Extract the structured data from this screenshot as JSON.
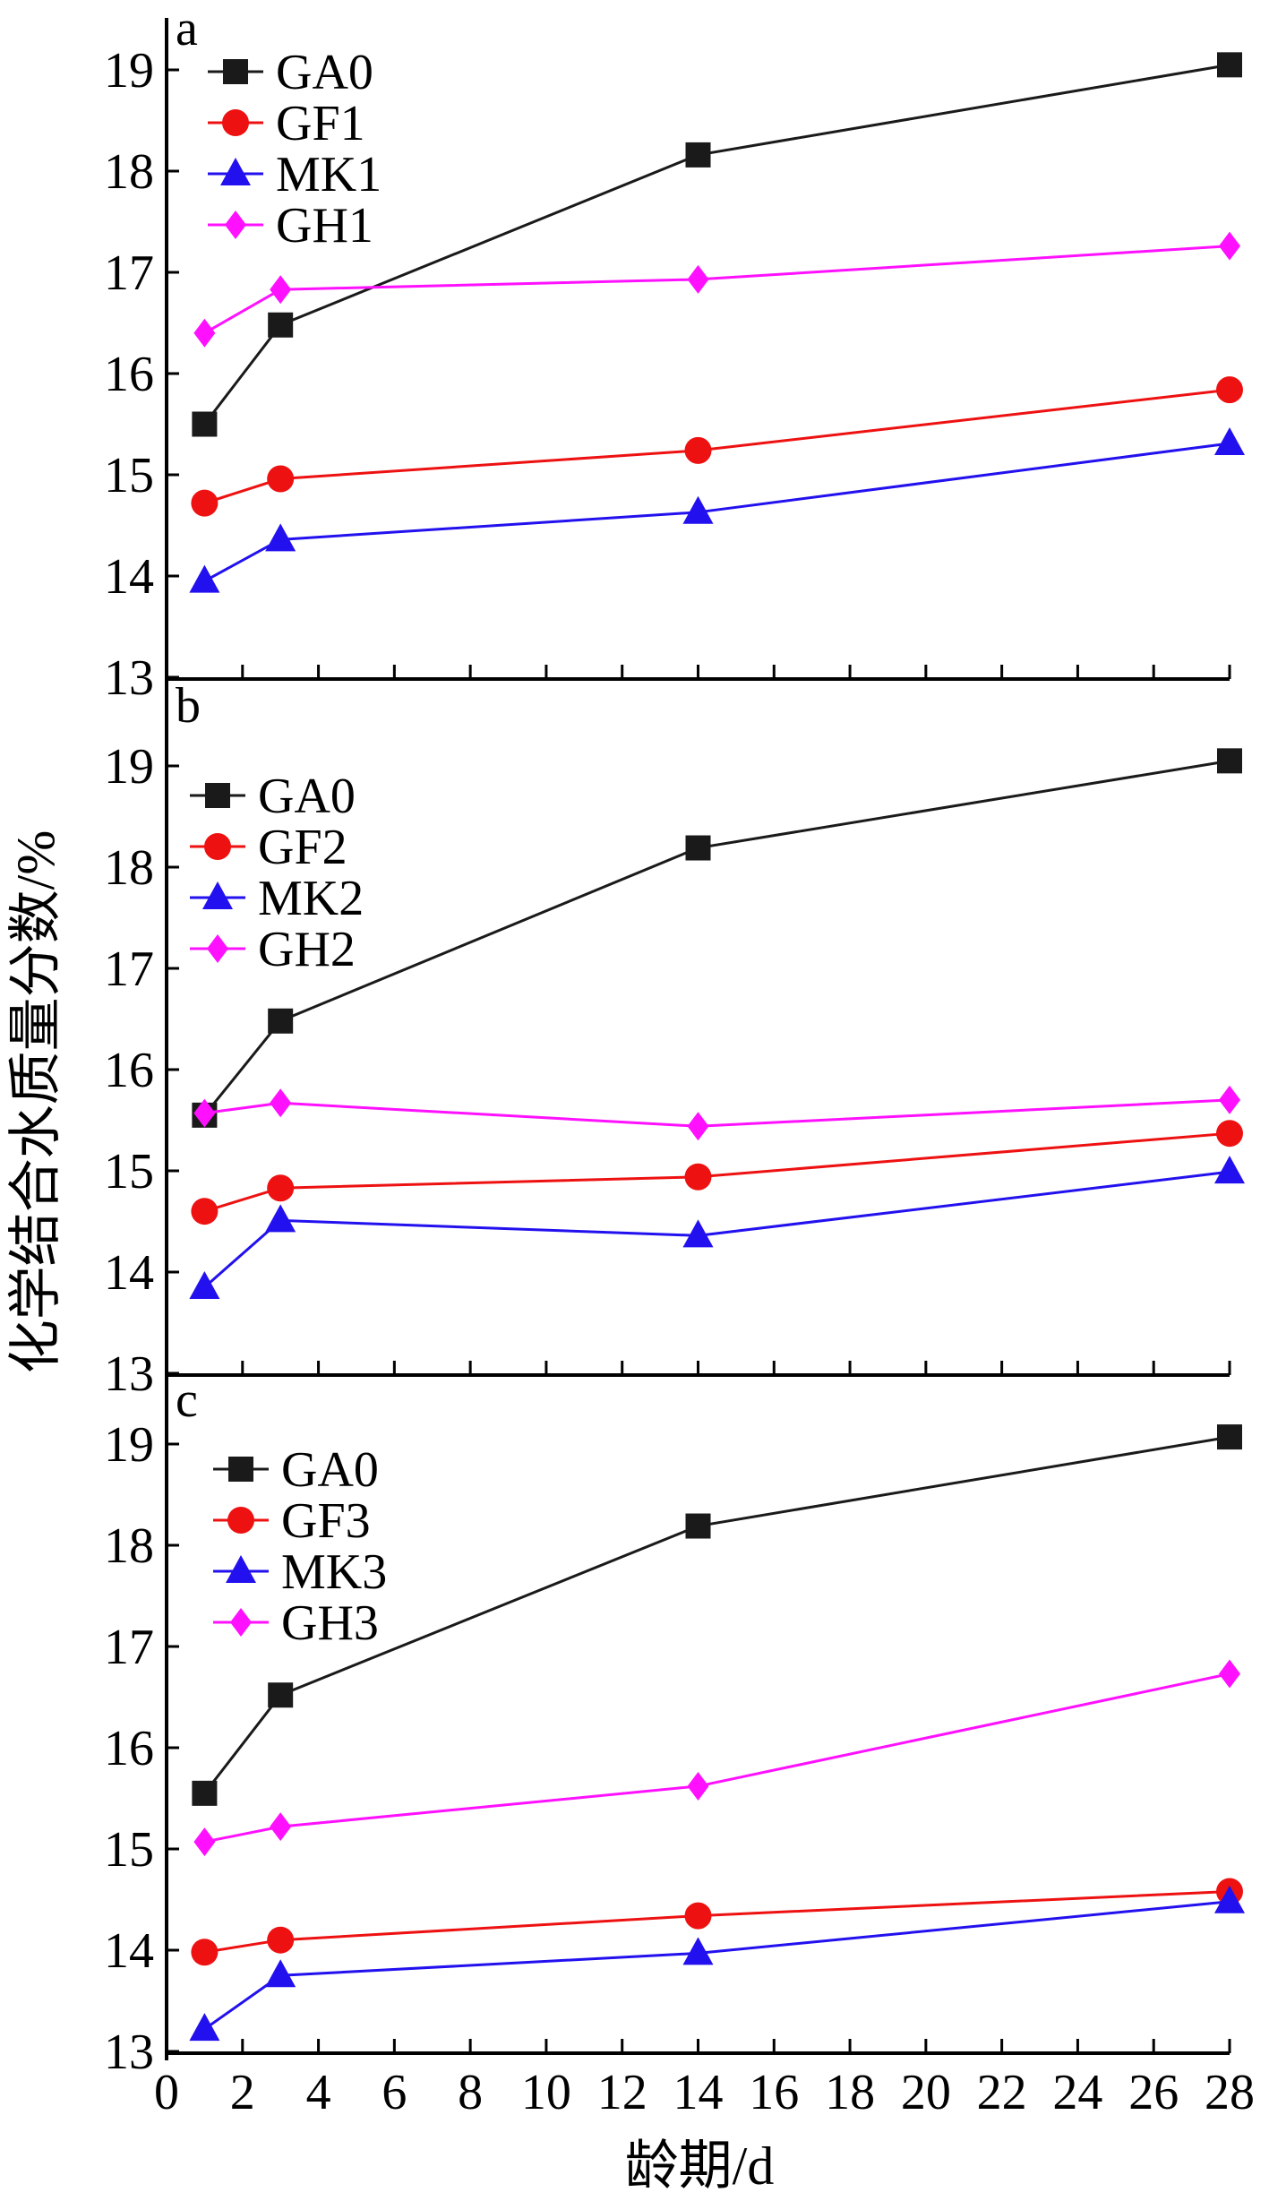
{
  "figure": {
    "x_axis_title": "龄期/d",
    "y_axis_title": "化学结合水质量分数/%"
  },
  "colors": {
    "GA0": "#1a1a1a",
    "GF": "#ee1111",
    "MK": "#2211ee",
    "GH": "#ff11ff",
    "axis": "#000000"
  },
  "chart_data": [
    {
      "type": "line",
      "panel_label": "a",
      "x": [
        1,
        3,
        14,
        28
      ],
      "xlim": [
        0,
        28
      ],
      "ylim": [
        13,
        19.5
      ],
      "x_ticks": [
        "0",
        "2",
        "4",
        "6",
        "8",
        "10",
        "12",
        "14",
        "16",
        "18",
        "20",
        "22",
        "24",
        "26",
        "28"
      ],
      "y_ticks": [
        "13",
        "14",
        "15",
        "16",
        "17",
        "18",
        "19"
      ],
      "legend_position": "top-left",
      "series": [
        {
          "name": "GA0",
          "marker": "square",
          "color_key": "GA0",
          "values": [
            15.5,
            16.48,
            18.16,
            19.05
          ]
        },
        {
          "name": "GF1",
          "marker": "circle",
          "color_key": "GF",
          "values": [
            14.72,
            14.96,
            15.24,
            15.84
          ]
        },
        {
          "name": "MK1",
          "marker": "triangle",
          "color_key": "MK",
          "values": [
            13.95,
            14.36,
            14.63,
            15.31
          ]
        },
        {
          "name": "GH1",
          "marker": "diamond",
          "color_key": "GH",
          "values": [
            16.4,
            16.83,
            16.93,
            17.26
          ]
        }
      ]
    },
    {
      "type": "line",
      "panel_label": "b",
      "x": [
        1,
        3,
        14,
        28
      ],
      "xlim": [
        0,
        28
      ],
      "ylim": [
        13,
        19.5
      ],
      "x_ticks": [
        "0",
        "2",
        "4",
        "6",
        "8",
        "10",
        "12",
        "14",
        "16",
        "18",
        "20",
        "22",
        "24",
        "26",
        "28"
      ],
      "y_ticks": [
        "13",
        "14",
        "15",
        "16",
        "17",
        "18",
        "19"
      ],
      "legend_position": "top-left",
      "series": [
        {
          "name": "GA0",
          "marker": "square",
          "color_key": "GA0",
          "values": [
            15.55,
            16.48,
            18.19,
            19.05
          ]
        },
        {
          "name": "GF2",
          "marker": "circle",
          "color_key": "GF",
          "values": [
            14.6,
            14.83,
            14.94,
            15.37
          ]
        },
        {
          "name": "MK2",
          "marker": "triangle",
          "color_key": "MK",
          "values": [
            13.85,
            14.51,
            14.36,
            14.99
          ]
        },
        {
          "name": "GH2",
          "marker": "diamond",
          "color_key": "GH",
          "values": [
            15.57,
            15.67,
            15.44,
            15.7
          ]
        }
      ]
    },
    {
      "type": "line",
      "panel_label": "c",
      "x": [
        1,
        3,
        14,
        28
      ],
      "xlim": [
        0,
        28
      ],
      "ylim": [
        13,
        19.5
      ],
      "x_ticks": [
        "0",
        "2",
        "4",
        "6",
        "8",
        "10",
        "12",
        "14",
        "16",
        "18",
        "20",
        "22",
        "24",
        "26",
        "28"
      ],
      "y_ticks": [
        "13",
        "14",
        "15",
        "16",
        "17",
        "18",
        "19"
      ],
      "legend_position": "top-left",
      "series": [
        {
          "name": "GA0",
          "marker": "square",
          "color_key": "GA0",
          "values": [
            15.55,
            16.52,
            18.19,
            19.07
          ]
        },
        {
          "name": "GF3",
          "marker": "circle",
          "color_key": "GF",
          "values": [
            13.98,
            14.1,
            14.34,
            14.58
          ]
        },
        {
          "name": "MK3",
          "marker": "triangle",
          "color_key": "MK",
          "values": [
            13.22,
            13.75,
            13.97,
            14.48
          ]
        },
        {
          "name": "GH3",
          "marker": "diamond",
          "color_key": "GH",
          "values": [
            15.07,
            15.22,
            15.62,
            16.73
          ]
        }
      ]
    }
  ]
}
